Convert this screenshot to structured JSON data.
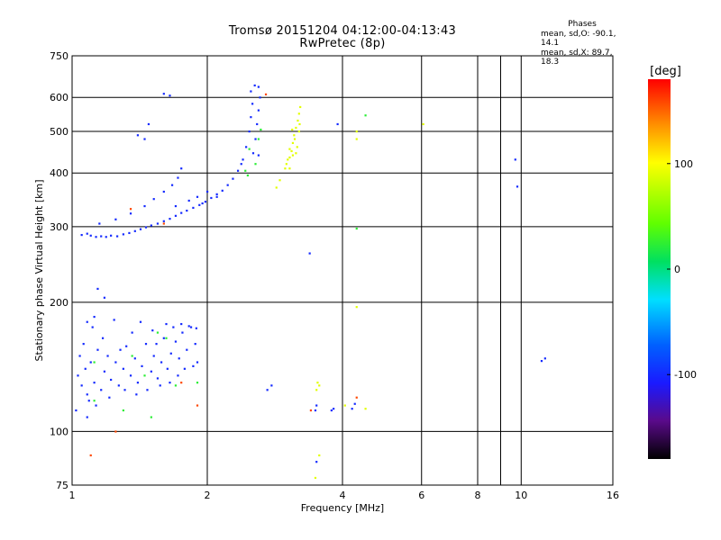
{
  "chart_data": {
    "type": "scatter",
    "title": "Tromsø 20151204 04:12:00-04:13:43",
    "subtitle": "RwPretec (8p)",
    "xlabel": "Frequency [MHz]",
    "ylabel": "Stationary phase Virtual Height [km]",
    "xscale": "log",
    "yscale": "log",
    "xlim": [
      1,
      16
    ],
    "ylim": [
      75,
      750
    ],
    "xticks": [
      1,
      2,
      4,
      6,
      8,
      10,
      16
    ],
    "xtick_labels": [
      "1",
      "2",
      "4",
      "6",
      "8",
      "10",
      "16"
    ],
    "xgrid": [
      2,
      4,
      6,
      8,
      9,
      10
    ],
    "yticks": [
      75,
      100,
      200,
      300,
      400,
      500,
      600,
      750
    ],
    "ytick_labels": [
      "75",
      "100",
      "200",
      "300",
      "400",
      "500",
      "600",
      "750"
    ],
    "ygrid": [
      100,
      200,
      300,
      400,
      500,
      600
    ],
    "grid": true,
    "colorbar": {
      "label": "[deg]",
      "range": [
        -180,
        180
      ],
      "ticks": [
        100,
        0,
        -100
      ],
      "tick_labels": [
        "100",
        "0",
        "-100"
      ]
    },
    "phase_stats": {
      "header": "Phases",
      "line1": "mean, sd,O: -90.1, 14.1",
      "line2": "mean, sd,X:  89.7, 18.3"
    },
    "series": [
      {
        "mode": "O",
        "phase": -100,
        "points": [
          [
            1.05,
            287
          ],
          [
            1.08,
            289
          ],
          [
            1.1,
            286
          ],
          [
            1.13,
            284
          ],
          [
            1.16,
            285
          ],
          [
            1.19,
            284
          ],
          [
            1.22,
            286
          ],
          [
            1.26,
            285
          ],
          [
            1.3,
            288
          ],
          [
            1.34,
            290
          ],
          [
            1.38,
            293
          ],
          [
            1.42,
            296
          ],
          [
            1.46,
            299
          ],
          [
            1.5,
            302
          ],
          [
            1.55,
            305
          ],
          [
            1.6,
            309
          ],
          [
            1.65,
            313
          ],
          [
            1.7,
            318
          ],
          [
            1.75,
            323
          ],
          [
            1.8,
            327
          ],
          [
            1.86,
            332
          ],
          [
            1.92,
            337
          ],
          [
            1.98,
            343
          ],
          [
            2.04,
            350
          ],
          [
            2.1,
            357
          ],
          [
            2.16,
            364
          ],
          [
            2.22,
            375
          ],
          [
            2.28,
            388
          ],
          [
            2.34,
            405
          ],
          [
            2.4,
            430
          ],
          [
            2.44,
            460
          ],
          [
            2.48,
            500
          ],
          [
            2.5,
            540
          ],
          [
            2.52,
            580
          ],
          [
            2.5,
            620
          ],
          [
            2.55,
            640
          ],
          [
            2.6,
            635
          ],
          [
            2.62,
            600
          ],
          [
            2.6,
            560
          ],
          [
            2.58,
            520
          ],
          [
            2.56,
            480
          ],
          [
            2.53,
            445
          ],
          [
            2.38,
            420
          ],
          [
            2.6,
            440
          ],
          [
            1.15,
            305
          ],
          [
            1.25,
            312
          ],
          [
            1.35,
            322
          ],
          [
            1.45,
            335
          ],
          [
            1.52,
            348
          ],
          [
            1.6,
            362
          ],
          [
            1.67,
            375
          ],
          [
            1.72,
            390
          ],
          [
            1.75,
            410
          ],
          [
            1.82,
            345
          ],
          [
            1.9,
            352
          ],
          [
            2.0,
            362
          ],
          [
            1.95,
            340
          ],
          [
            2.1,
            352
          ],
          [
            1.7,
            335
          ],
          [
            1.6,
            612
          ],
          [
            1.65,
            606
          ],
          [
            1.48,
            520
          ],
          [
            1.4,
            490
          ],
          [
            1.45,
            480
          ],
          [
            3.9,
            520
          ],
          [
            9.7,
            430
          ],
          [
            9.8,
            372
          ],
          [
            1.03,
            135
          ],
          [
            1.05,
            128
          ],
          [
            1.07,
            140
          ],
          [
            1.08,
            122
          ],
          [
            1.1,
            145
          ],
          [
            1.12,
            130
          ],
          [
            1.14,
            155
          ],
          [
            1.16,
            125
          ],
          [
            1.18,
            138
          ],
          [
            1.2,
            150
          ],
          [
            1.22,
            132
          ],
          [
            1.25,
            145
          ],
          [
            1.27,
            128
          ],
          [
            1.3,
            140
          ],
          [
            1.32,
            158
          ],
          [
            1.35,
            135
          ],
          [
            1.38,
            148
          ],
          [
            1.4,
            130
          ],
          [
            1.43,
            142
          ],
          [
            1.46,
            160
          ],
          [
            1.5,
            138
          ],
          [
            1.52,
            150
          ],
          [
            1.55,
            133
          ],
          [
            1.58,
            145
          ],
          [
            1.6,
            165
          ],
          [
            1.63,
            140
          ],
          [
            1.66,
            152
          ],
          [
            1.7,
            162
          ],
          [
            1.73,
            148
          ],
          [
            1.76,
            170
          ],
          [
            1.8,
            155
          ],
          [
            1.84,
            175
          ],
          [
            1.88,
            160
          ],
          [
            1.9,
            145
          ],
          [
            1.04,
            150
          ],
          [
            1.06,
            160
          ],
          [
            1.09,
            118
          ],
          [
            1.11,
            175
          ],
          [
            1.13,
            115
          ],
          [
            1.17,
            165
          ],
          [
            1.21,
            120
          ],
          [
            1.24,
            182
          ],
          [
            1.28,
            155
          ],
          [
            1.31,
            125
          ],
          [
            1.36,
            170
          ],
          [
            1.39,
            122
          ],
          [
            1.42,
            180
          ],
          [
            1.47,
            125
          ],
          [
            1.51,
            172
          ],
          [
            1.54,
            160
          ],
          [
            1.57,
            128
          ],
          [
            1.62,
            178
          ],
          [
            1.65,
            130
          ],
          [
            1.68,
            175
          ],
          [
            1.72,
            135
          ],
          [
            1.75,
            178
          ],
          [
            1.78,
            140
          ],
          [
            1.82,
            176
          ],
          [
            1.86,
            142
          ],
          [
            1.89,
            174
          ],
          [
            1.08,
            108
          ],
          [
            1.02,
            112
          ],
          [
            1.14,
            215
          ],
          [
            1.18,
            205
          ],
          [
            1.08,
            180
          ],
          [
            1.12,
            185
          ],
          [
            3.48,
            112
          ],
          [
            3.5,
            115
          ],
          [
            3.78,
            112
          ],
          [
            3.82,
            113
          ],
          [
            4.2,
            113
          ],
          [
            4.26,
            116
          ],
          [
            3.5,
            85
          ],
          [
            2.78,
            128
          ],
          [
            2.72,
            125
          ],
          [
            11.1,
            146
          ],
          [
            11.3,
            148
          ],
          [
            3.38,
            260
          ]
        ]
      },
      {
        "mode": "X",
        "phase": 90,
        "points": [
          [
            3.0,
            420
          ],
          [
            3.05,
            435
          ],
          [
            3.08,
            450
          ],
          [
            3.1,
            470
          ],
          [
            3.12,
            490
          ],
          [
            3.15,
            510
          ],
          [
            3.18,
            530
          ],
          [
            3.2,
            550
          ],
          [
            3.22,
            570
          ],
          [
            3.05,
            410
          ],
          [
            3.1,
            440
          ],
          [
            3.17,
            460
          ],
          [
            3.13,
            480
          ],
          [
            3.2,
            500
          ],
          [
            3.05,
            455
          ],
          [
            3.15,
            445
          ],
          [
            3.09,
            505
          ],
          [
            3.21,
            520
          ],
          [
            3.02,
            430
          ],
          [
            2.98,
            410
          ],
          [
            2.9,
            385
          ],
          [
            2.85,
            370
          ],
          [
            3.5,
            125
          ],
          [
            3.52,
            130
          ],
          [
            3.55,
            128
          ],
          [
            4.3,
            480
          ],
          [
            4.3,
            500
          ],
          [
            6.05,
            520
          ],
          [
            4.3,
            195
          ],
          [
            4.5,
            113
          ],
          [
            4.05,
            115
          ],
          [
            3.55,
            88
          ],
          [
            3.48,
            78
          ]
        ]
      },
      {
        "mode": "scatter",
        "phase": 20,
        "points": [
          [
            1.5,
            108
          ],
          [
            1.3,
            112
          ],
          [
            1.12,
            118
          ],
          [
            1.45,
            135
          ],
          [
            1.62,
            165
          ],
          [
            1.9,
            130
          ],
          [
            2.43,
            405
          ],
          [
            2.46,
            395
          ],
          [
            2.56,
            420
          ],
          [
            2.48,
            455
          ],
          [
            2.6,
            480
          ],
          [
            2.63,
            505
          ],
          [
            4.3,
            297
          ],
          [
            4.5,
            545
          ],
          [
            1.12,
            145
          ],
          [
            1.7,
            128
          ],
          [
            1.36,
            150
          ],
          [
            1.55,
            170
          ]
        ]
      },
      {
        "mode": "scatter",
        "phase": 160,
        "points": [
          [
            1.35,
            330
          ],
          [
            1.6,
            305
          ],
          [
            1.75,
            130
          ],
          [
            1.9,
            115
          ],
          [
            4.3,
            120
          ],
          [
            3.4,
            112
          ],
          [
            2.7,
            610
          ],
          [
            1.1,
            88
          ],
          [
            1.25,
            100
          ]
        ]
      }
    ]
  }
}
